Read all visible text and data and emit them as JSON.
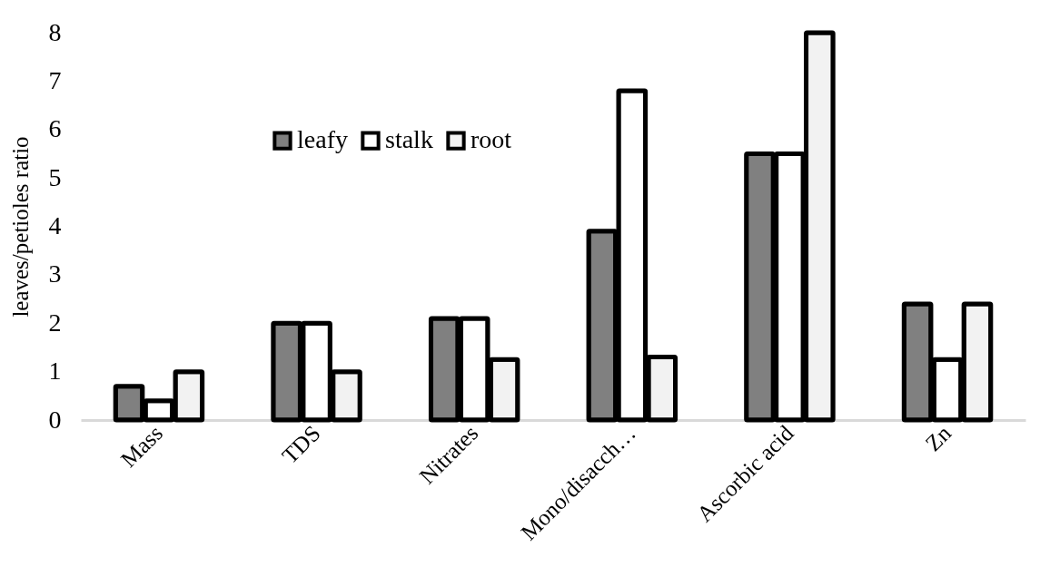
{
  "chart_data": {
    "type": "bar",
    "ylabel": "leaves/petioles ratio",
    "categories": [
      "Mass",
      "TDS",
      "Nitrates",
      "Mono/disacch…",
      "Ascorbic acid",
      "Zn"
    ],
    "series": [
      {
        "name": "leafy",
        "color": "#808080",
        "values": [
          0.7,
          2.0,
          2.1,
          3.9,
          5.5,
          2.4
        ]
      },
      {
        "name": "stalk",
        "color": "#ffffff",
        "values": [
          0.4,
          2.0,
          2.1,
          6.8,
          5.5,
          1.25
        ]
      },
      {
        "name": "root",
        "color": "#f2f2f2",
        "values": [
          1.0,
          1.0,
          1.25,
          1.3,
          8.0,
          2.4
        ]
      }
    ],
    "ylim": [
      0,
      8
    ],
    "yticks": [
      0,
      1,
      2,
      3,
      4,
      5,
      6,
      7,
      8
    ],
    "grid": false,
    "legend": "top"
  }
}
